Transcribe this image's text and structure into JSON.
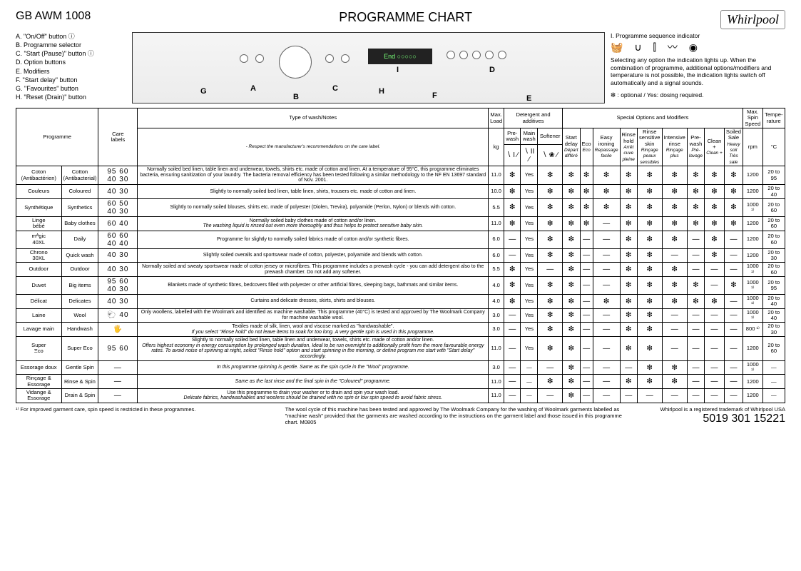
{
  "header": {
    "model": "GB   AWM 1008",
    "title": "PROGRAMME CHART",
    "logo": "Whirlpool"
  },
  "legend_left": [
    "A. \"On/Off\" button ⓘ",
    "B. Programme selector",
    "C. \"Start (Pause)\" button ⓘ",
    "D. Option buttons",
    "E. Modifiers",
    "F. \"Start delay\" button",
    "G. \"Favourites\" button",
    "H. \"Reset (Drain)\" button"
  ],
  "legend_right": {
    "seq_title": "I.  Programme sequence indicator",
    "seq_icons": "🧺 ∪ ⫿ 〰 ◉",
    "note": "Selecting any option the indication lights up. When the combination of programme, additional options/modifiers and temperature is not possible, the indication lights switch off automatically and a signal sounds.",
    "opt_note": "❇ : optional / Yes: dosing required."
  },
  "panel_marks": [
    "A",
    "B",
    "C",
    "D",
    "E",
    "F",
    "G",
    "H",
    "I"
  ],
  "columns": {
    "programme": "Programme",
    "care": "Care\nlabels",
    "type": "Type of wash/Notes",
    "type_sub": "- Respect the manufacturer's recommendations on the care label.",
    "maxload": "Max.\nLoad",
    "maxload_unit": "kg",
    "detergent_group": "Detergent and additives",
    "prewash": "Pre-\nwash",
    "mainwash": "Main\nwash",
    "softener": "Softener",
    "det_icons": [
      "∖ I ∕",
      "∖ II ∕",
      "∖ ❀ ∕"
    ],
    "special_group": "Special Options and Modifiers",
    "special": [
      {
        "en": "Start\ndelay",
        "fr": "Départ\ndifféré"
      },
      {
        "en": "Eco",
        "fr": "Eco"
      },
      {
        "en": "Easy\nironing",
        "fr": "Repassage\nfacile"
      },
      {
        "en": "Rinse\nhold",
        "fr": "Arrêt\ncuve\npleine"
      },
      {
        "en": "Rinse\nsensitive\nskin",
        "fr": "Rinçage\npeaux\nsensibles"
      },
      {
        "en": "Intensive\nrinse",
        "fr": "Rinçage\nplus"
      },
      {
        "en": "Pre-\nwash",
        "fr": "Pré-\nlavage"
      },
      {
        "en": "Clean +",
        "fr": "Clean +"
      },
      {
        "en": "Soiled\nSale",
        "fr": "Heavy\nsoil\nTrès\nsale"
      }
    ],
    "spin": "Max.\nSpin\nSpeed",
    "spin_unit": "rpm",
    "temp": "Tempe-\nrature",
    "temp_unit": "°C"
  },
  "rows": [
    {
      "fr": "Coton\n(Antibactérien)",
      "en": "Cotton\n(Antibacterial)",
      "care": "95 60\n40 30",
      "notes": "Normally soiled bed linen, table linen and underwear, towels, shirts etc. made of cotton and linen. At a temperature of 95°C, this programme eliminates bacteria, ensuring sanitization of your laundry. The bacteria removal efficiency has been tested following a similar methodology to the NF EN 13697 standard of Nov. 2001.",
      "load": "11.0",
      "pre": "❇",
      "main": "Yes",
      "soft": "❇",
      "opts": [
        "❇",
        "❇",
        "❇",
        "❇",
        "❇",
        "❇",
        "❇",
        "❇",
        "❇"
      ],
      "spin": "1200",
      "temp": "20 to 95"
    },
    {
      "fr": "Couleurs",
      "en": "Coloured",
      "care": "40 30",
      "notes": "Slightly to normally soiled bed linen, table linen, shirts, trousers etc. made of cotton and linen.",
      "load": "10.0",
      "pre": "❇",
      "main": "Yes",
      "soft": "❇",
      "opts": [
        "❇",
        "❇",
        "❇",
        "❇",
        "❇",
        "❇",
        "❇",
        "❇",
        "❇"
      ],
      "spin": "1200",
      "temp": "20 to 40"
    },
    {
      "fr": "Synthétique",
      "en": "Synthetics",
      "care": "60 50\n40 30",
      "notes": "Slightly to normally soiled blouses, shirts etc. made of polyester (Diolen, Trevira), polyamide (Perlon, Nylon) or blends with cotton.",
      "load": "5.5",
      "pre": "❇",
      "main": "Yes",
      "soft": "❇",
      "opts": [
        "❇",
        "❇",
        "❇",
        "❇",
        "❇",
        "❇",
        "❇",
        "❇",
        "❇"
      ],
      "spin": "1000 ¹⁾",
      "temp": "20 to 60"
    },
    {
      "fr": "Linge\nbébé",
      "en": "Baby clothes",
      "care": "60 40",
      "notes": "Normally soiled baby clothes made of cotton and/or linen.\nThe washing liquid is rinsed out even more thoroughly and thus helps to protect sensitive baby skin.",
      "notes_ital_from": 1,
      "load": "11.0",
      "pre": "❇",
      "main": "Yes",
      "soft": "❇",
      "opts": [
        "❇",
        "❇",
        "—",
        "❇",
        "❇",
        "❇",
        "❇",
        "❇",
        "❇"
      ],
      "spin": "1200",
      "temp": "20 to 60"
    },
    {
      "fr": "mᴬgic\n40XL",
      "en": "Daily",
      "care": "60 60\n40 40",
      "notes": "Programme for slightly to normally soiled fabrics made of cotton and/or synthetic fibres.",
      "load": "6.0",
      "pre": "—",
      "main": "Yes",
      "soft": "❇",
      "opts": [
        "❇",
        "—",
        "—",
        "❇",
        "❇",
        "❇",
        "—",
        "❇",
        "—"
      ],
      "spin": "1200",
      "temp": "20 to 60"
    },
    {
      "fr": "Chrono\n30XL",
      "en": "Quick wash",
      "care": "40 30",
      "notes": "Slightly soiled overalls and sportswear made of cotton, polyester, polyamide and blends with cotton.",
      "load": "6.0",
      "pre": "—",
      "main": "Yes",
      "soft": "❇",
      "opts": [
        "❇",
        "—",
        "—",
        "❇",
        "❇",
        "—",
        "—",
        "❇",
        "—"
      ],
      "spin": "1200",
      "temp": "20 to 30"
    },
    {
      "fr": "Outdoor",
      "en": "Outdoor",
      "care": "40 30",
      "notes": "Normally soiled and sweaty sportswear made of cotton jersey or microfibres. This programme includes a prewash cycle - you can add detergent also to the prewash chamber. Do not add any softener.",
      "load": "5.5",
      "pre": "❇",
      "main": "Yes",
      "soft": "—",
      "opts": [
        "❇",
        "—",
        "—",
        "❇",
        "❇",
        "❇",
        "—",
        "—",
        "—"
      ],
      "spin": "1000 ¹⁾",
      "temp": "20 to 60"
    },
    {
      "fr": "Duvet",
      "en": "Big items",
      "care": "95 60\n40 30",
      "notes": "Blankets made of synthetic fibres, bedcovers filled with polyester or other artificial fibres, sleeping bags, bathmats and similar items.",
      "load": "4.0",
      "pre": "❇",
      "main": "Yes",
      "soft": "❇",
      "opts": [
        "❇",
        "—",
        "—",
        "❇",
        "❇",
        "❇",
        "❇",
        "—",
        "❇"
      ],
      "spin": "1000 ¹⁾",
      "temp": "20 to 95"
    },
    {
      "fr": "Délicat",
      "en": "Delicates",
      "care": "40 30",
      "notes": "Curtains and delicate dresses, skirts, shirts and blouses.",
      "load": "4.0",
      "pre": "❇",
      "main": "Yes",
      "soft": "❇",
      "opts": [
        "❇",
        "—",
        "❇",
        "❇",
        "❇",
        "❇",
        "❇",
        "❇",
        "—"
      ],
      "spin": "1000 ¹⁾",
      "temp": "20 to 40"
    },
    {
      "fr": "Laine",
      "en": "Wool",
      "care": "🐑 40",
      "notes": "Only woollens, labelled with the Woolmark and identified as machine washable. This programme (40°C) is tested and approved by The Woolmark Company for machine washable wool.",
      "load": "3.0",
      "pre": "—",
      "main": "Yes",
      "soft": "❇",
      "opts": [
        "❇",
        "—",
        "—",
        "❇",
        "❇",
        "—",
        "—",
        "—",
        "—"
      ],
      "spin": "1000 ¹⁾",
      "temp": "20 to 40"
    },
    {
      "fr": "Lavage main",
      "en": "Handwash",
      "care": "🖐",
      "notes": "Textiles made of silk, linen, wool and viscose marked as \"handwashable\".\nIf you select \"Rinse hold\" do not leave items to soak for too long. A very gentle spin is used in this programme.",
      "notes_ital_from": 1,
      "load": "3.0",
      "pre": "—",
      "main": "Yes",
      "soft": "❇",
      "opts": [
        "❇",
        "—",
        "—",
        "❇",
        "❇",
        "—",
        "—",
        "—",
        "—"
      ],
      "spin": "800 ¹⁾",
      "temp": "20 to 30"
    },
    {
      "fr": "Super\nΞco",
      "en": "Super Eco",
      "care": "95 60",
      "notes": "Slightly to normally soiled bed linen, table linen and underwear, towels, shirts etc. made of cotton and/or linen.\nOffers highest economy in energy consumption by prolonged wash duration. Ideal to be run overnight to additionally profit from the more favourable energy rates. To avoid noise of spinning at night, select \"Rinse hold\" option and start spinning in the morning, or define program me start with \"Start delay\" accordingly.",
      "notes_ital_from": 1,
      "load": "11.0",
      "pre": "—",
      "main": "Yes",
      "soft": "❇",
      "opts": [
        "❇",
        "—",
        "—",
        "❇",
        "❇",
        "—",
        "—",
        "—",
        "—"
      ],
      "spin": "1200",
      "temp": "20 to 60"
    },
    {
      "fr": "Essorage doux",
      "en": "Gentle Spin",
      "care": "—",
      "notes": "In this programme spinning is gentle. Same as the spin cycle in the \"Wool\" programme.",
      "notes_all_ital": true,
      "load": "3.0",
      "pre": "—",
      "main": "—",
      "soft": "—",
      "opts": [
        "❇",
        "—",
        "—",
        "—",
        "❇",
        "❇",
        "—",
        "—",
        "—"
      ],
      "spin": "1000 ¹⁾",
      "temp": "—"
    },
    {
      "fr": "Rinçage & Essorage",
      "en": "Rinse & Spin",
      "care": "—",
      "notes": "Same as the last rinse and the final spin in the \"Coloured\" programme.",
      "notes_all_ital": true,
      "load": "11.0",
      "pre": "—",
      "main": "—",
      "soft": "❇",
      "opts": [
        "❇",
        "—",
        "—",
        "❇",
        "❇",
        "❇",
        "—",
        "—",
        "—"
      ],
      "spin": "1200",
      "temp": "—"
    },
    {
      "fr": "Vidange & Essorage",
      "en": "Drain & Spin",
      "care": "—",
      "notes": "Use this programme to drain your washer or to drain and spin your wash load.\nDelicate fabrics, handwashables and woolens should be drained with no spin or low spin speed to avoid fabric stress.",
      "notes_ital_from": 1,
      "load": "11.0",
      "pre": "—",
      "main": "—",
      "soft": "—",
      "opts": [
        "❇",
        "—",
        "—",
        "—",
        "—",
        "—",
        "—",
        "—",
        "—"
      ],
      "spin": "1200",
      "temp": "—"
    }
  ],
  "footer": {
    "note1": "¹⁾  For improved garment care, spin speed is restricted in these programmes.",
    "note2": "The wool cycle of this machine has been tested and approved by The Woolmark Company for the washing of Woolmark garments labelled as \"machine wash\" provided that the garments are washed according to the instructions on the garment label and those issued in this programme chart.  M0805",
    "trademark": "Whirlpool is a registered trademark of Whirlpool USA",
    "partno": "5019 301 15221"
  }
}
